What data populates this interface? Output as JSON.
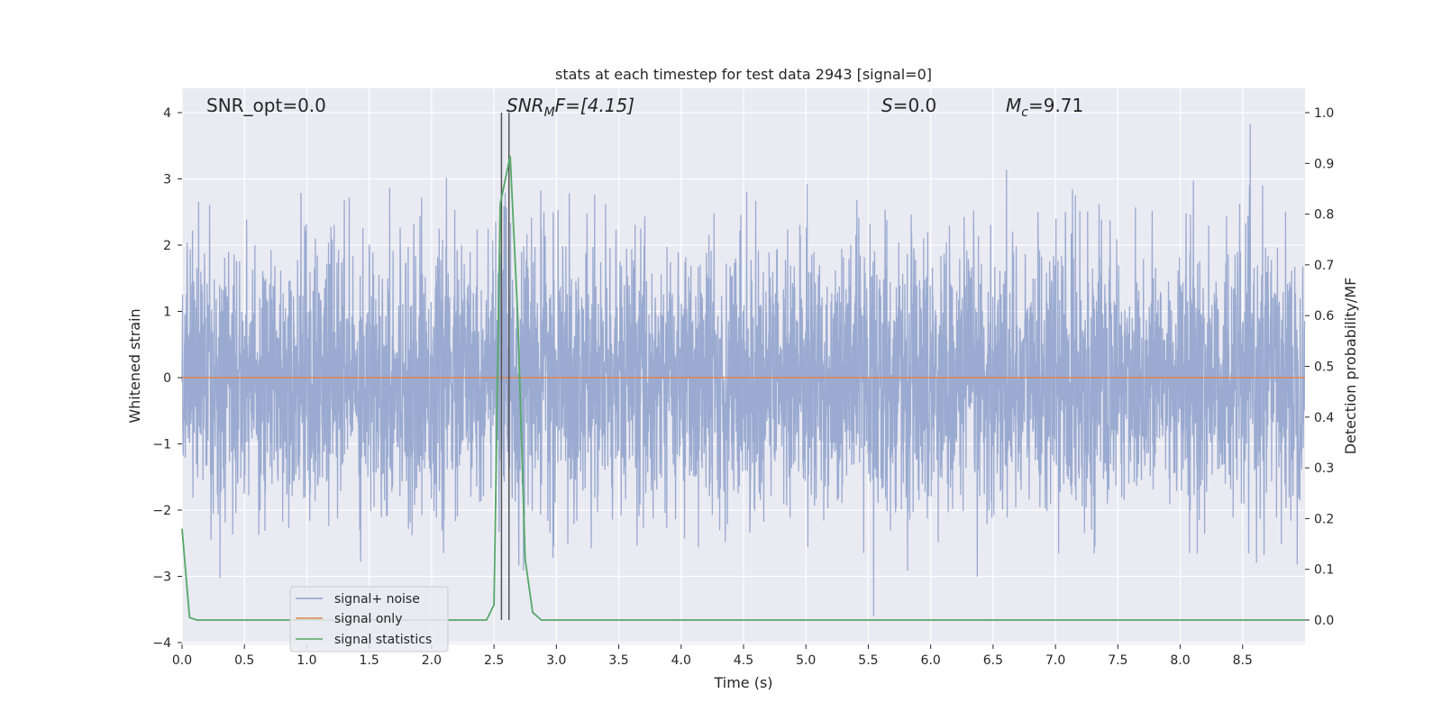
{
  "chart_data": {
    "type": "line",
    "title": "stats at each timestep for test data 2943 [signal=0]",
    "xlabel": "Time (s)",
    "ylabel": "Whitened strain",
    "y2label": "Detection probability/MF",
    "xlim": [
      0,
      9
    ],
    "ylim": [
      -4,
      4.4
    ],
    "y2lim": [
      -0.05,
      1.04
    ],
    "xticks": [
      "0.0",
      "0.5",
      "1.0",
      "1.5",
      "2.0",
      "2.5",
      "3.0",
      "3.5",
      "4.0",
      "4.5",
      "5.0",
      "5.5",
      "6.0",
      "6.5",
      "7.0",
      "7.5",
      "8.0",
      "8.5"
    ],
    "xtick_values": [
      0,
      0.5,
      1,
      1.5,
      2,
      2.5,
      3,
      3.5,
      4,
      4.5,
      5,
      5.5,
      6,
      6.5,
      7,
      7.5,
      8,
      8.5
    ],
    "yticks": [
      "4",
      "3",
      "2",
      "1",
      "0",
      "−1",
      "−2",
      "−3",
      "−4"
    ],
    "ytick_values": [
      4,
      3,
      2,
      1,
      0,
      -1,
      -2,
      -3,
      -4
    ],
    "y2ticks": [
      "1.0",
      "0.9",
      "0.8",
      "0.7",
      "0.6",
      "0.5",
      "0.4",
      "0.3",
      "0.2",
      "0.1",
      "0.0"
    ],
    "y2tick_values": [
      1.0,
      0.9,
      0.8,
      0.7,
      0.6,
      0.5,
      0.4,
      0.3,
      0.2,
      0.1,
      0.0
    ],
    "grid": true,
    "legend_position": "lower-left",
    "series": [
      {
        "name": "signal+ noise",
        "color": "#8c9fca",
        "kind": "noise",
        "axis": "left",
        "sample_rate": 512,
        "approx_min": -3.6,
        "approx_max": 4.0
      },
      {
        "name": "signal only",
        "color": "#dd8452",
        "axis": "left",
        "x": [
          0,
          9
        ],
        "values": [
          0,
          0
        ]
      },
      {
        "name": "signal statistics",
        "color": "#55a868",
        "axis": "right",
        "x": [
          0,
          0.06,
          0.12,
          0.25,
          0.5,
          1.0,
          1.5,
          2.0,
          2.44,
          2.5,
          2.55,
          2.63,
          2.69,
          2.75,
          2.81,
          2.88,
          3.0,
          5.0,
          7.0,
          9.0
        ],
        "values": [
          0.18,
          0.005,
          0.0,
          0.0,
          0.0,
          0.0,
          0.0,
          0.0,
          0.0,
          0.03,
          0.82,
          0.915,
          0.6,
          0.12,
          0.015,
          0.0,
          0.0,
          0.0,
          0.0,
          0.0
        ]
      }
    ],
    "markers": [
      {
        "name": "vertical line 1",
        "color": "#555555",
        "x": 2.56
      },
      {
        "name": "vertical line 2",
        "color": "#555555",
        "x": 2.62
      }
    ],
    "annotations": {
      "snr_opt": "SNR_opt=0.0",
      "snr_mf_main": "SNR",
      "snr_mf_sub": "M",
      "snr_mf_rest": "F=[4.15]",
      "s_main": "S",
      "s_rest": "=0.0",
      "mc_main": "M",
      "mc_sub": "c",
      "mc_rest": "=9.71"
    }
  },
  "colors": {
    "plot_bg": "#eaeaf2",
    "grid": "#ffffff",
    "text": "#262626"
  }
}
